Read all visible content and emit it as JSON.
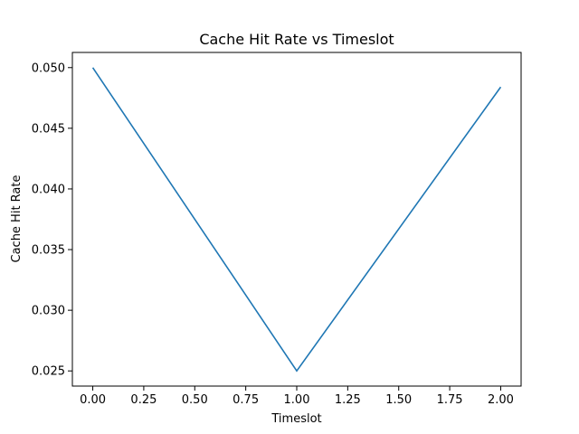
{
  "chart_data": {
    "type": "line",
    "title": "Cache Hit Rate vs Timeslot",
    "xlabel": "Timeslot",
    "ylabel": "Cache Hit Rate",
    "xlim": [
      -0.1,
      2.1
    ],
    "ylim": [
      0.02375,
      0.05125
    ],
    "x_ticks": [
      0.0,
      0.25,
      0.5,
      0.75,
      1.0,
      1.25,
      1.5,
      1.75,
      2.0
    ],
    "x_tick_labels": [
      "0.00",
      "0.25",
      "0.50",
      "0.75",
      "1.00",
      "1.25",
      "1.50",
      "1.75",
      "2.00"
    ],
    "y_ticks": [
      0.025,
      0.03,
      0.035,
      0.04,
      0.045,
      0.05
    ],
    "y_tick_labels": [
      "0.025",
      "0.030",
      "0.035",
      "0.040",
      "0.045",
      "0.050"
    ],
    "grid": false,
    "series": [
      {
        "x": [
          0,
          1,
          2
        ],
        "y": [
          0.05,
          0.025,
          0.0484
        ],
        "color": "#1f77b4"
      }
    ]
  }
}
